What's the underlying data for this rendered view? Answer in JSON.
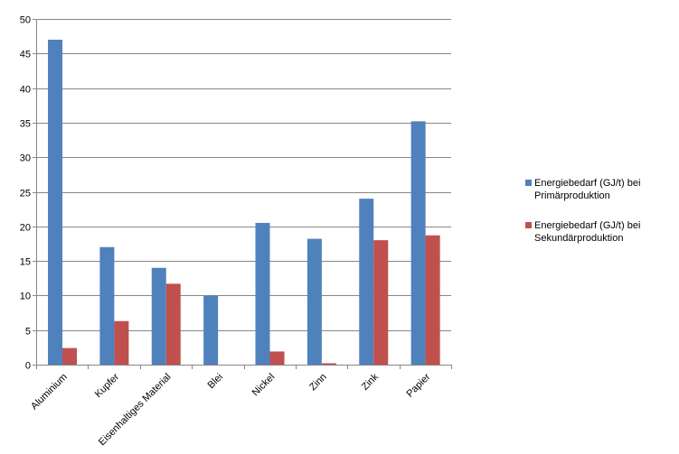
{
  "chart_data": {
    "type": "bar",
    "categories": [
      "Aluminium",
      "Kupfer",
      "Eisenhaltiges Material",
      "Blei",
      "Nickel",
      "Zinn",
      "Zink",
      "Papier"
    ],
    "series": [
      {
        "name": "Energiebedarf (GJ/t) bei Primärproduktion",
        "name_lines": [
          "Energiebedarf (GJ/t) bei",
          "Primärproduktion"
        ],
        "color": "#4f81bd",
        "values": [
          47,
          17,
          14,
          10,
          20.5,
          18.2,
          24,
          35.2
        ]
      },
      {
        "name": "Energiebedarf (GJ/t) bei Sekundärproduktion",
        "name_lines": [
          "Energiebedarf (GJ/t) bei",
          "Sekundärproduktion"
        ],
        "color": "#c0504d",
        "values": [
          2.4,
          6.3,
          11.7,
          0,
          1.9,
          0.2,
          18,
          18.7
        ]
      }
    ],
    "yticks": [
      "0",
      "5",
      "10",
      "15",
      "20",
      "25",
      "30",
      "35",
      "40",
      "45",
      "50"
    ],
    "ylim": [
      0,
      50
    ],
    "grid": true,
    "legend_position": "right"
  }
}
